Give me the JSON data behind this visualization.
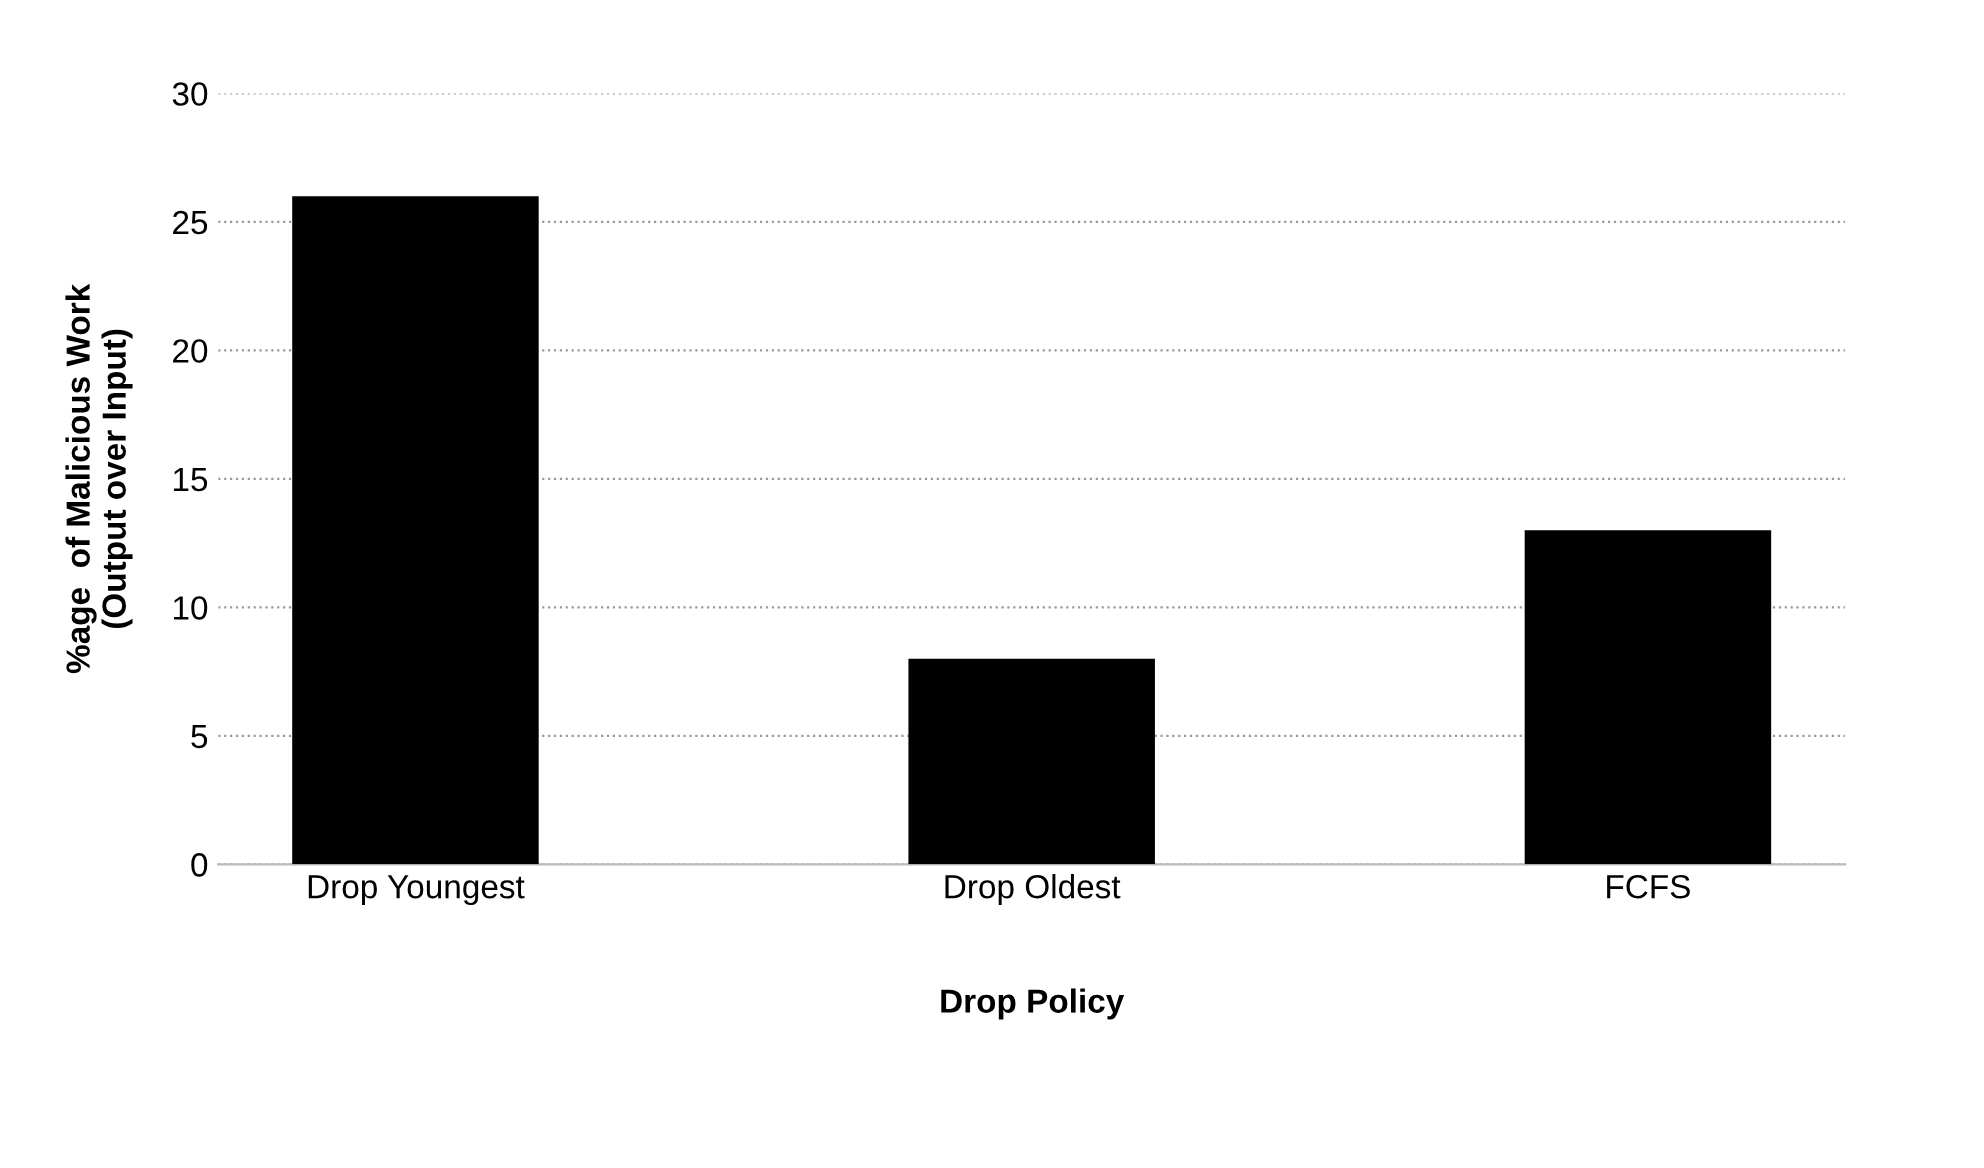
{
  "chart_data": {
    "type": "bar",
    "xlabel": "Drop Policy",
    "ylabel": "%age  of Malicious Work\n(Output over Input)",
    "categories": [
      "Drop Youngest",
      "Drop Oldest",
      "FCFS"
    ],
    "values": [
      26,
      8,
      13
    ],
    "color": "#000000",
    "ylim": [
      0,
      30
    ],
    "yticks": [
      0,
      5,
      10,
      15,
      20,
      25,
      30
    ],
    "grid": "y"
  }
}
